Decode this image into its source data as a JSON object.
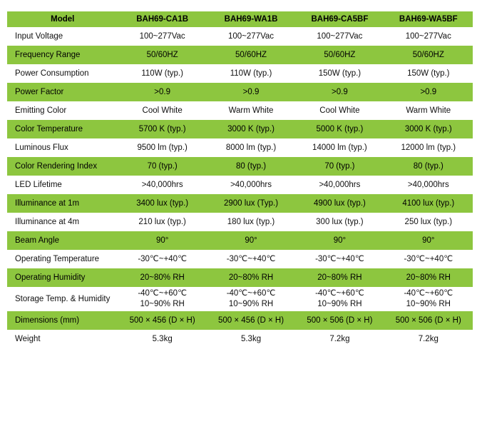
{
  "colors": {
    "stripe_green": "#8DC63F",
    "header_green": "#8DC63F",
    "text": "#000000",
    "background": "#ffffff"
  },
  "table": {
    "header": [
      "Model",
      "BAH69-CA1B",
      "BAH69-WA1B",
      "BAH69-CA5BF",
      "BAH69-WA5BF"
    ],
    "rows": [
      {
        "label": "Input Voltage",
        "values": [
          "100~277Vac",
          "100~277Vac",
          "100~277Vac",
          "100~277Vac"
        ]
      },
      {
        "label": "Frequency Range",
        "values": [
          "50/60HZ",
          "50/60HZ",
          "50/60HZ",
          "50/60HZ"
        ]
      },
      {
        "label": "Power Consumption",
        "values": [
          "110W (typ.)",
          "110W (typ.)",
          "150W (typ.)",
          "150W (typ.)"
        ]
      },
      {
        "label": "Power Factor",
        "values": [
          ">0.9",
          ">0.9",
          ">0.9",
          ">0.9"
        ]
      },
      {
        "label": "Emitting Color",
        "values": [
          "Cool White",
          "Warm White",
          "Cool White",
          "Warm White"
        ]
      },
      {
        "label": "Color Temperature",
        "values": [
          "5700 K (typ.)",
          "3000 K (typ.)",
          "5000 K (typ.)",
          "3000 K (typ.)"
        ]
      },
      {
        "label": "Luminous Flux",
        "values": [
          "9500 lm (typ.)",
          "8000 lm (typ.)",
          "14000 lm (typ.)",
          "12000 lm (typ.)"
        ]
      },
      {
        "label": "Color Rendering Index",
        "values": [
          "70 (typ.)",
          "80 (typ.)",
          "70 (typ.)",
          "80 (typ.)"
        ]
      },
      {
        "label": "LED Lifetime",
        "values": [
          ">40,000hrs",
          ">40,000hrs",
          ">40,000hrs",
          ">40,000hrs"
        ]
      },
      {
        "label": "Illuminance at 1m",
        "values": [
          "3400 lux (typ.)",
          "2900 lux (Typ.)",
          "4900 lux (typ.)",
          "4100 lux (typ.)"
        ]
      },
      {
        "label": "Illuminance at 4m",
        "values": [
          "210 lux (typ.)",
          "180 lux (typ.)",
          "300 lux (typ.)",
          "250 lux (typ.)"
        ]
      },
      {
        "label": "Beam Angle",
        "values": [
          "90°",
          "90°",
          "90°",
          "90°"
        ]
      },
      {
        "label": "Operating Temperature",
        "values": [
          "-30℃~+40℃",
          "-30℃~+40℃",
          "-30℃~+40℃",
          "-30℃~+40℃"
        ]
      },
      {
        "label": "Operating Humidity",
        "values": [
          "20~80% RH",
          "20~80% RH",
          "20~80% RH",
          "20~80% RH"
        ]
      },
      {
        "label": "Storage Temp. & Humidity",
        "values": [
          "-40℃~+60℃\n10~90% RH",
          "-40℃~+60℃\n10~90% RH",
          "-40℃~+60℃\n10~90% RH",
          "-40℃~+60℃\n10~90% RH"
        ]
      },
      {
        "label": "Dimensions (mm)",
        "values": [
          "500 × 456 (D × H)",
          "500 × 456 (D × H)",
          "500 × 506 (D × H)",
          "500 × 506 (D × H)"
        ]
      },
      {
        "label": "Weight",
        "values": [
          "5.3kg",
          "5.3kg",
          "7.2kg",
          "7.2kg"
        ]
      }
    ]
  }
}
